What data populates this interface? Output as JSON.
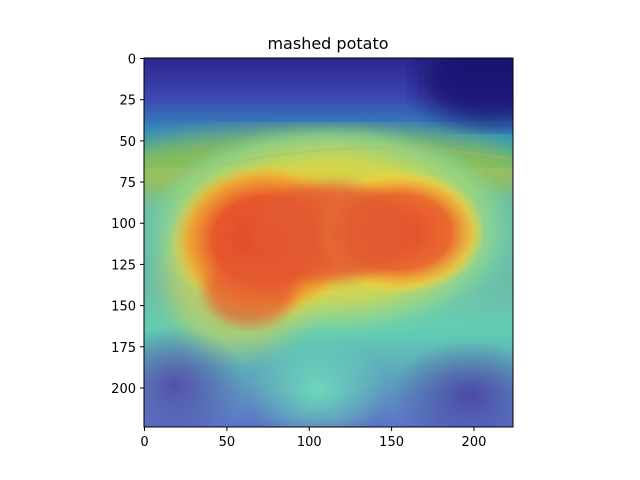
{
  "figure": {
    "title": "mashed potato",
    "x_ticks": [
      0,
      50,
      100,
      150,
      200
    ],
    "y_ticks": [
      0,
      25,
      50,
      75,
      100,
      125,
      150,
      175,
      200
    ],
    "x_range": [
      0,
      224
    ],
    "y_range": [
      0,
      224
    ],
    "y_inverted": true,
    "colormap": "jet",
    "overlay_alpha": 0.55
  }
}
